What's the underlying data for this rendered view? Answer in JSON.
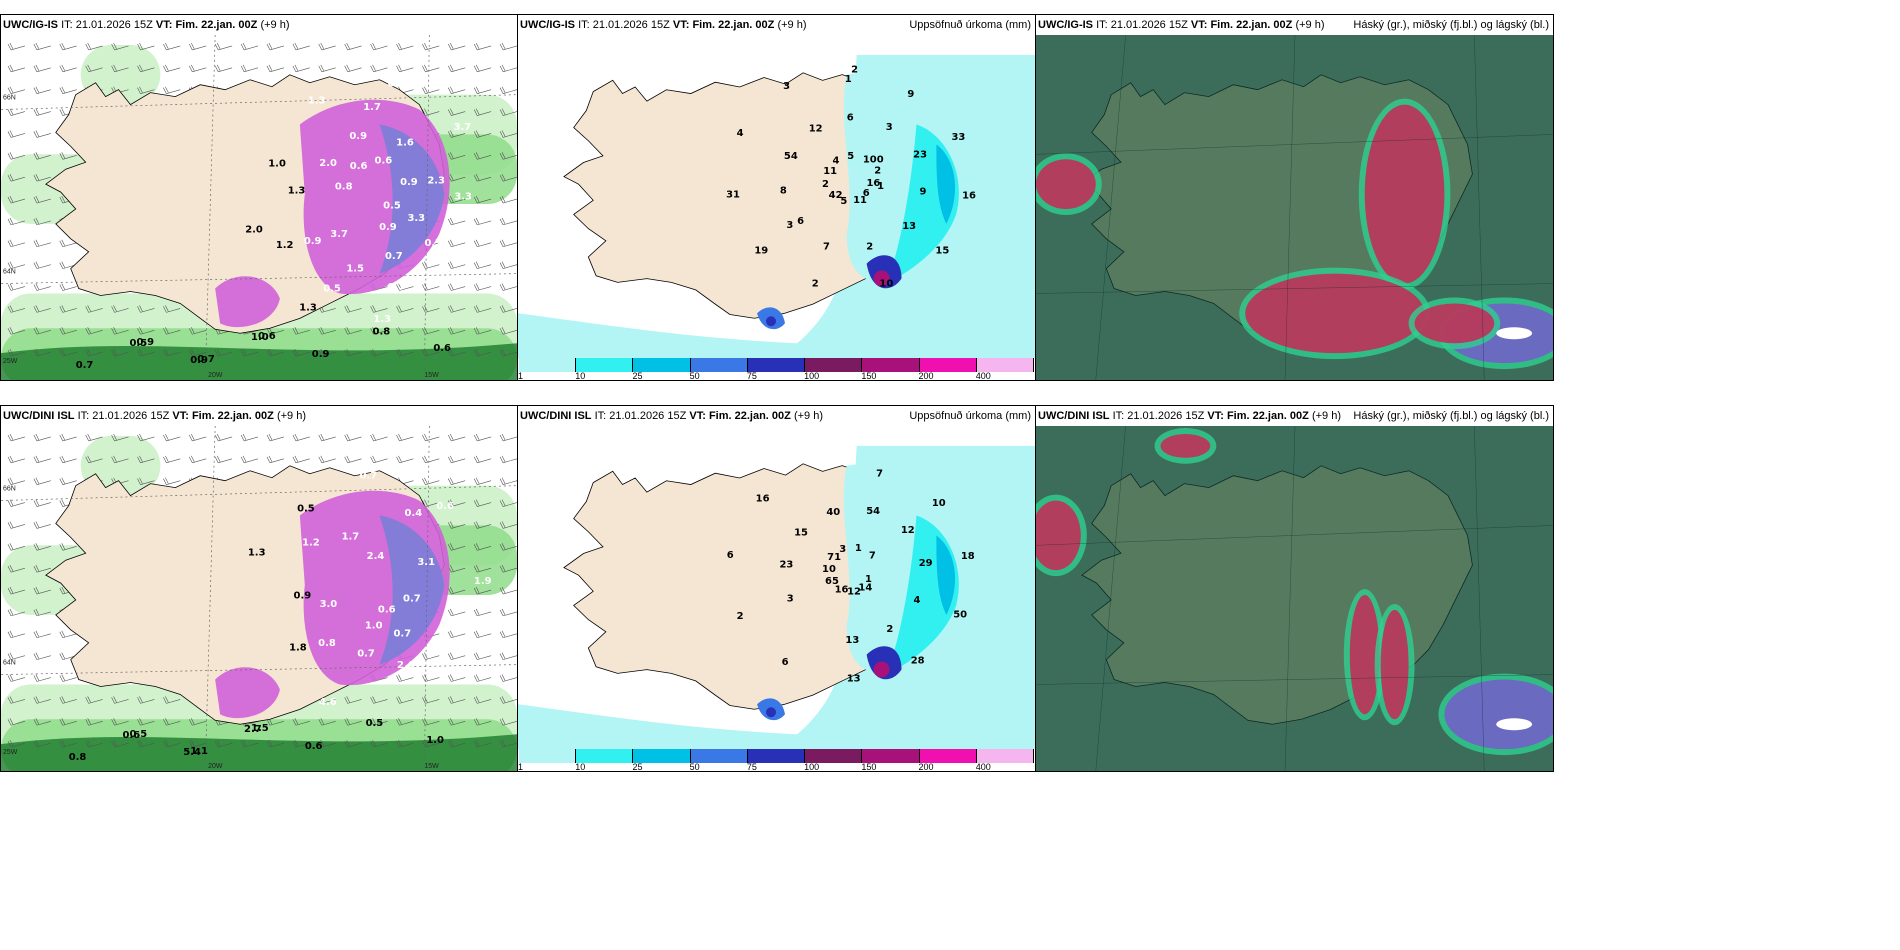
{
  "panels": [
    {
      "id": "p1",
      "model": "UWC/IG-IS",
      "it": "21.01.2026 15Z",
      "vt": "Fim. 22.jan. 00Z",
      "offset": "(+9 h)",
      "right": ""
    },
    {
      "id": "p2",
      "model": "UWC/IG-IS",
      "it": "21.01.2026 15Z",
      "vt": "Fim. 22.jan. 00Z",
      "offset": "(+9 h)",
      "right": "Uppsöfnuð úrkoma (mm)"
    },
    {
      "id": "p3",
      "model": "UWC/IG-IS",
      "it": "21.01.2026 15Z",
      "vt": "Fim. 22.jan. 00Z",
      "offset": "(+9 h)",
      "right": "Háský (gr.), miðský (fj.bl.) og lágský (bl.)"
    },
    {
      "id": "p4",
      "model": "UWC/DINI ISL",
      "it": "21.01.2026 15Z",
      "vt": "Fim. 22.jan. 00Z",
      "offset": "(+9 h)",
      "right": ""
    },
    {
      "id": "p5",
      "model": "UWC/DINI ISL",
      "it": "21.01.2026 15Z",
      "vt": "Fim. 22.jan. 00Z",
      "offset": "(+9 h)",
      "right": "Uppsöfnuð úrkoma (mm)"
    },
    {
      "id": "p6",
      "model": "UWC/DINI ISL",
      "it": "21.01.2026 15Z",
      "vt": "Fim. 22.jan. 00Z",
      "offset": "(+9 h)",
      "right": "Háský (gr.), miðský (fj.bl.) og lágský (bl.)"
    }
  ],
  "labels": {
    "it": "IT:",
    "vt": "VT:"
  },
  "colorbar": {
    "ticks": [
      "1",
      "10",
      "25",
      "50",
      "75",
      "100",
      "150",
      "200",
      "400"
    ],
    "colors": [
      "#b3f5f5",
      "#33f0f0",
      "#00c0e6",
      "#3a78e6",
      "#2830b8",
      "#7a1a60",
      "#a8107a",
      "#f010b0",
      "#f5b6ef"
    ]
  },
  "grid_labels": {
    "lat_66": "66N",
    "lat_64": "64N",
    "lon_20": "20W",
    "lon_15": "15W",
    "lon_25": "25W"
  },
  "snow_top": [
    "0.5",
    "0.9",
    "0.5",
    "0.7",
    "1.0",
    "0.9",
    "0.5",
    "0.6",
    "0.7",
    "2.0",
    "1.6",
    "1.3",
    "2.0",
    "3.3",
    "3.7",
    "1.7",
    "0.9",
    "1.3",
    "3.7",
    "1.5",
    "1.3",
    "3.3",
    "1.2",
    "0.6",
    "0.7",
    "0.8",
    "2.3",
    "1.3",
    "0.9",
    "0.5",
    "0.9",
    "1.0",
    "0.9",
    "0.8",
    "0.6",
    "0.7",
    "0.9",
    "0.7",
    "0.6"
  ],
  "snow_bottom": [
    "0.6",
    "0.9",
    "0.6",
    "0.7",
    "0.5",
    "0.7",
    "1.8",
    "2.4",
    "2.6",
    "1.3",
    "3.1",
    "4.6",
    "1.7",
    "0.5",
    "3.0",
    "0.4",
    "1.0",
    "1.2",
    "1.9",
    "0.8",
    "0.7",
    "0.7",
    "0.6",
    "5.4",
    "2.7",
    "0.6",
    "0.5",
    "1.0",
    "0.8",
    "0.5",
    "1.1",
    "1.5"
  ],
  "precip_top": [
    "16",
    "6",
    "1",
    "6",
    "8",
    "9",
    "11",
    "54",
    "33",
    "5",
    "12",
    "16",
    "42",
    "6",
    "15",
    "2",
    "3",
    "10",
    "11",
    "23",
    "2",
    "4",
    "9",
    "19",
    "5",
    "13",
    "31",
    "100",
    "2",
    "4",
    "2",
    "7",
    "3",
    "1",
    "3",
    "2"
  ],
  "precip_bottom": [
    "1",
    "3",
    "7",
    "14",
    "23",
    "10",
    "12",
    "15",
    "18",
    "16",
    "40",
    "50",
    "65",
    "54",
    "28",
    "10",
    "12",
    "13",
    "71",
    "29",
    "6",
    "3",
    "4",
    "2",
    "1",
    "2",
    "6",
    "7",
    "13",
    "16"
  ]
}
